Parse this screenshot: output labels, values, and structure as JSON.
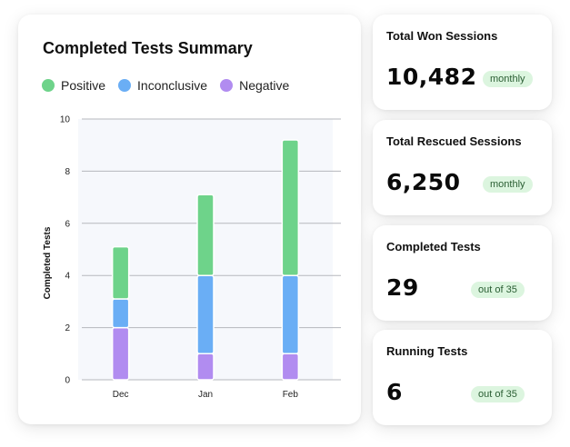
{
  "chart_card": {
    "title": "Completed Tests Summary",
    "legend": [
      {
        "label": "Positive",
        "color": "#6ed38a"
      },
      {
        "label": "Inconclusive",
        "color": "#6aaef5"
      },
      {
        "label": "Negative",
        "color": "#b18cf0"
      }
    ]
  },
  "chart_data": {
    "type": "bar",
    "stacked": true,
    "title": "Completed Tests Summary",
    "xlabel": "",
    "ylabel": "Completed Tests",
    "categories": [
      "Dec",
      "Jan",
      "Feb"
    ],
    "ylim": [
      0,
      10
    ],
    "yticks": [
      0,
      2,
      4,
      6,
      8,
      10
    ],
    "grid": true,
    "legend_position": "top-left",
    "series": [
      {
        "name": "Negative",
        "color": "#b18cf0",
        "values": [
          2,
          1,
          1
        ]
      },
      {
        "name": "Inconclusive",
        "color": "#6aaef5",
        "values": [
          1.1,
          3,
          3
        ]
      },
      {
        "name": "Positive",
        "color": "#6ed38a",
        "values": [
          2,
          3.1,
          5.2
        ]
      }
    ]
  },
  "stats": [
    {
      "title": "Total Won Sessions",
      "value": "10,482",
      "badge": "monthly"
    },
    {
      "title": "Total Rescued Sessions",
      "value": "6,250",
      "badge": "monthly"
    },
    {
      "title": "Completed Tests",
      "value": "29",
      "badge": "out of 35"
    },
    {
      "title": "Running Tests",
      "value": "6",
      "badge": "out of 35"
    }
  ]
}
